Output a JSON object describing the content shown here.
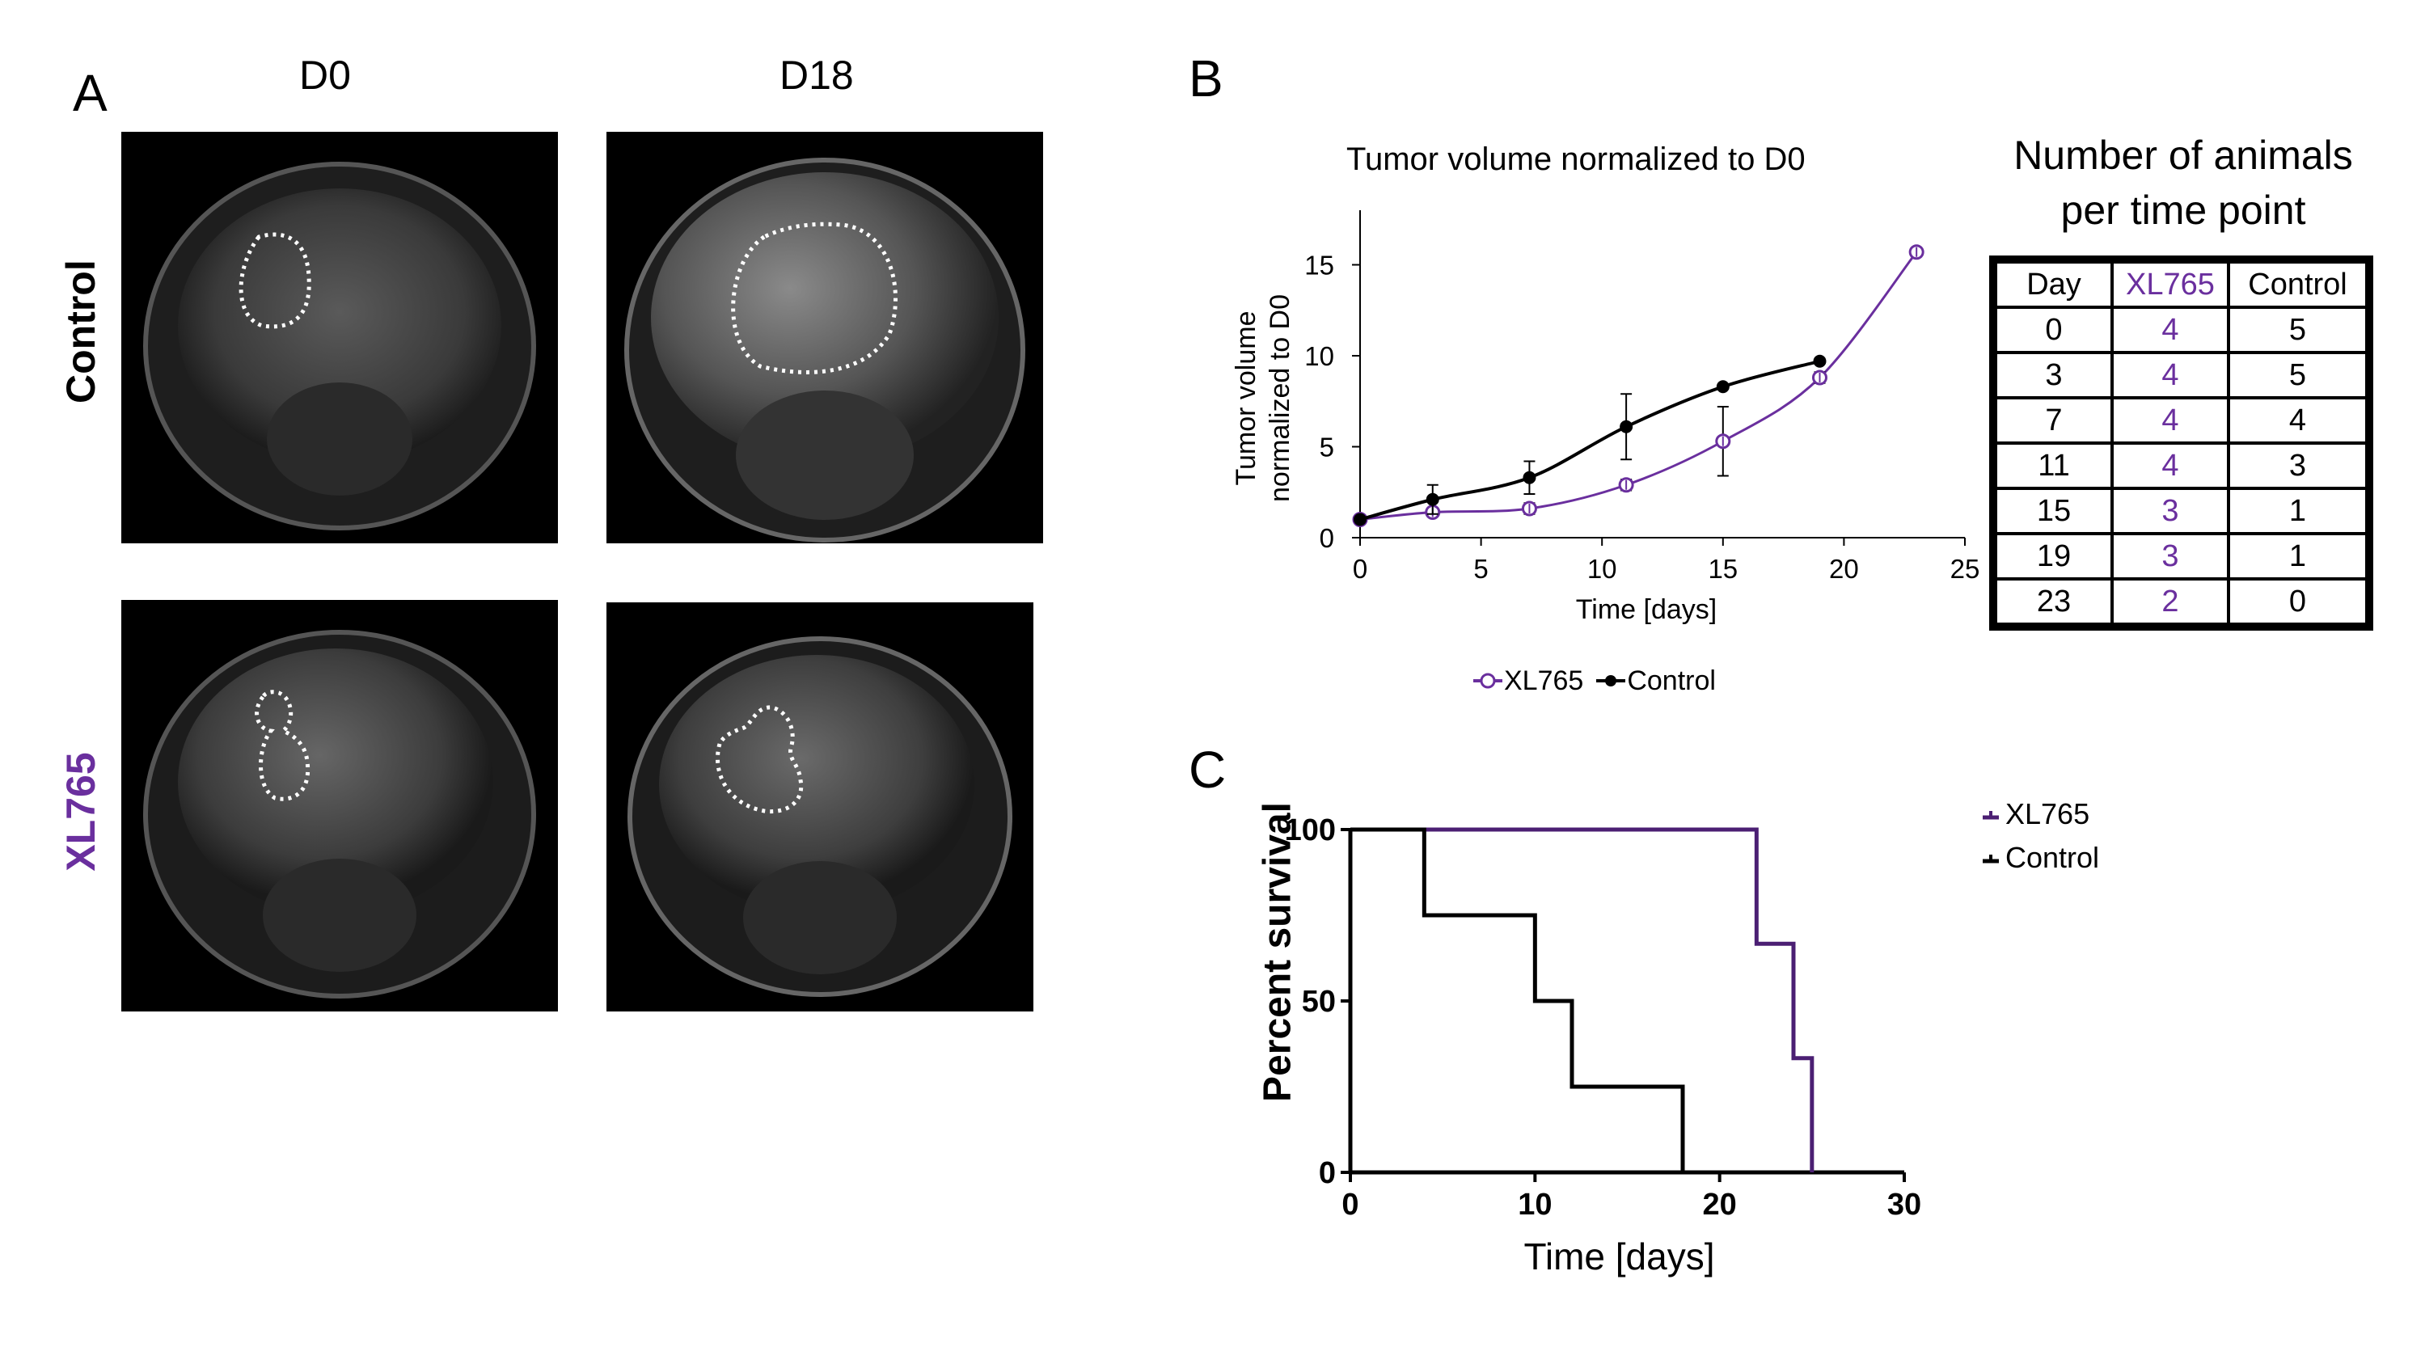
{
  "panels": {
    "a": "A",
    "b": "B",
    "c": "C"
  },
  "panel_a": {
    "columns": [
      "D0",
      "D18"
    ],
    "rows": [
      {
        "label": "Control",
        "color": "#000000"
      },
      {
        "label": "XL765",
        "color": "#6a2f9e"
      }
    ]
  },
  "colors": {
    "xl765": "#6a2f9e",
    "control": "#000000"
  },
  "chart_data": [
    {
      "type": "line",
      "title": "Tumor volume normalized to D0",
      "xlabel": "Time [days]",
      "ylabel_line1": "Tumor volume",
      "ylabel_line2": "normalized to D0",
      "xlim": [
        0,
        25
      ],
      "ylim": [
        0,
        18
      ],
      "xticks": [
        0,
        5,
        10,
        15,
        20,
        25
      ],
      "yticks": [
        0,
        5,
        10,
        15
      ],
      "series": [
        {
          "name": "XL765",
          "marker": "open-circle",
          "x": [
            0,
            3,
            7,
            11,
            15,
            19,
            23
          ],
          "y": [
            1.0,
            1.4,
            1.6,
            2.9,
            5.3,
            8.8,
            15.7
          ],
          "err": [
            0,
            0.2,
            0.3,
            0.3,
            1.9,
            0.3,
            0
          ]
        },
        {
          "name": "Control",
          "marker": "filled-circle",
          "x": [
            0,
            3,
            7,
            11,
            15,
            19
          ],
          "y": [
            1.0,
            2.1,
            3.3,
            6.1,
            8.3,
            9.7
          ],
          "err": [
            0,
            0.8,
            0.9,
            1.8,
            0,
            0
          ]
        }
      ],
      "legend": [
        "XL765",
        "Control"
      ]
    },
    {
      "type": "line",
      "subtype": "kaplan-meier",
      "xlabel": "Time [days]",
      "ylabel": "Percent survival",
      "xlim": [
        0,
        30
      ],
      "ylim": [
        0,
        100
      ],
      "xticks": [
        0,
        10,
        20,
        30
      ],
      "yticks": [
        0,
        50,
        100
      ],
      "series": [
        {
          "name": "XL765",
          "steps": [
            [
              0,
              100
            ],
            [
              22,
              100
            ],
            [
              22,
              66.7
            ],
            [
              24,
              66.7
            ],
            [
              24,
              33.3
            ],
            [
              25,
              33.3
            ],
            [
              25,
              0
            ]
          ]
        },
        {
          "name": "Control",
          "steps": [
            [
              0,
              100
            ],
            [
              4,
              100
            ],
            [
              4,
              75
            ],
            [
              10,
              75
            ],
            [
              10,
              50
            ],
            [
              12,
              50
            ],
            [
              12,
              25
            ],
            [
              18,
              25
            ],
            [
              18,
              0
            ]
          ]
        }
      ],
      "legend": [
        "XL765",
        "Control"
      ]
    }
  ],
  "animal_table": {
    "title_line1": "Number of animals",
    "title_line2": "per time point",
    "headers": [
      "Day",
      "XL765",
      "Control"
    ],
    "rows": [
      [
        "0",
        "4",
        "5"
      ],
      [
        "3",
        "4",
        "5"
      ],
      [
        "7",
        "4",
        "4"
      ],
      [
        "11",
        "4",
        "3"
      ],
      [
        "15",
        "3",
        "1"
      ],
      [
        "19",
        "3",
        "1"
      ],
      [
        "23",
        "2",
        "0"
      ]
    ]
  }
}
